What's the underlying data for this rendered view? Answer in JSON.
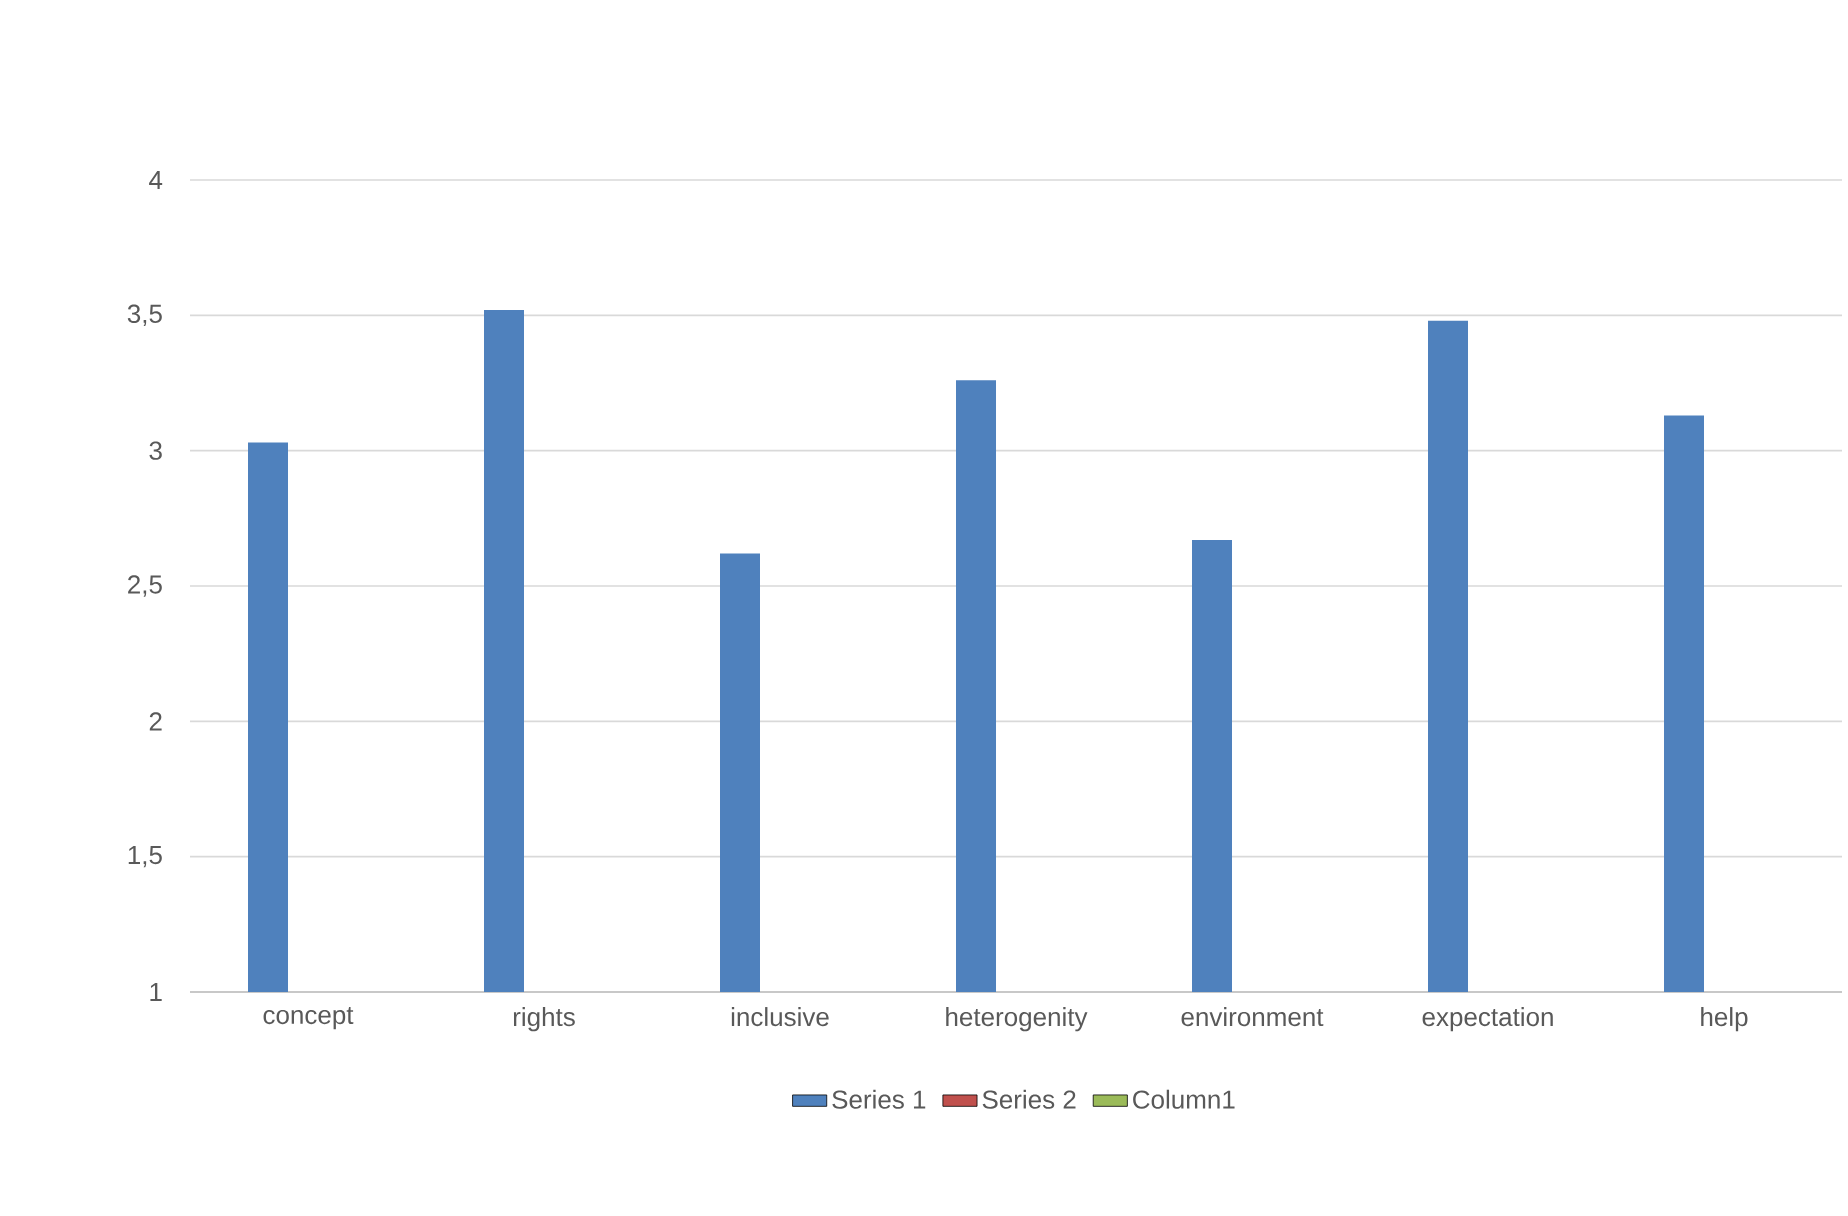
{
  "chart_data": {
    "type": "bar",
    "categories": [
      "concept",
      "rights",
      "inclusive",
      "heterogenity",
      "environment",
      "expectation",
      "help"
    ],
    "series": [
      {
        "name": "Series 1",
        "color": "#4f81bd",
        "values": [
          3.03,
          3.52,
          2.62,
          3.26,
          2.67,
          3.48,
          3.13
        ]
      },
      {
        "name": "Series 2",
        "color": "#c0504d",
        "values": [
          null,
          null,
          null,
          null,
          null,
          null,
          null
        ]
      },
      {
        "name": "Column1",
        "color": "#9bbb59",
        "values": [
          null,
          null,
          null,
          null,
          null,
          null,
          null
        ]
      }
    ],
    "ylim": [
      1,
      4
    ],
    "yticks": [
      1,
      {
        "value": 1.5,
        "label": "1,5"
      },
      2,
      {
        "value": 2.5,
        "label": "2,5"
      },
      3,
      {
        "value": 3.5,
        "label": "3,5"
      },
      4
    ],
    "grid": "y",
    "legend": "bottom"
  }
}
